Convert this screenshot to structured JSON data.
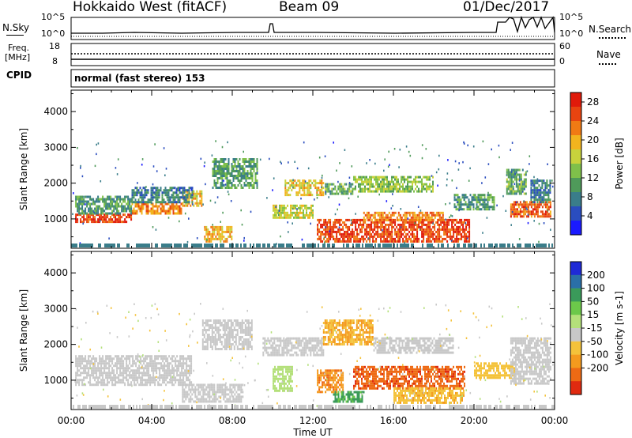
{
  "header": {
    "station": "Hokkaido West (fitACF)",
    "beam": "Beam 09",
    "date": "01/Dec/2017"
  },
  "noise_panel": {
    "left_label": "N.Sky",
    "right_label": "N.Search",
    "left_top_tick": "10^5",
    "left_bottom_tick": "10^0",
    "right_top_tick": "10^5",
    "right_bottom_tick": "10^0"
  },
  "freq_panel": {
    "left_label_1": "Freq.",
    "left_label_2": "[MHz]",
    "right_label": "Nave",
    "left_top_tick": "18",
    "left_bottom_tick": "8",
    "right_top_tick": "60",
    "right_bottom_tick": "0"
  },
  "cpid": {
    "label": "CPID",
    "program": "normal (fast stereo) 153"
  },
  "chart_data": [
    {
      "type": "heatmap",
      "panel": "power",
      "ylabel": "Slant Range [km]",
      "xlabel": "",
      "ylim": [
        180,
        4600
      ],
      "xlim": [
        0,
        24
      ],
      "y_ticks": [
        "1000",
        "2000",
        "3000",
        "4000"
      ],
      "colorbar": {
        "label": "Power [dB]",
        "ticks": [
          "4",
          "8",
          "12",
          "16",
          "20",
          "24",
          "28"
        ],
        "colors": [
          "#1a1aff",
          "#2a4dbf",
          "#3a7d8a",
          "#4f9a5a",
          "#7fc04a",
          "#c8d23c",
          "#f2b41e",
          "#f07a14",
          "#e84410",
          "#e01a0a"
        ]
      },
      "bands": [
        {
          "t0": 0.2,
          "t1": 3.0,
          "r0": 900,
          "r1": 1150,
          "value": 26
        },
        {
          "t0": 3.0,
          "t1": 5.5,
          "r0": 1150,
          "r1": 1450,
          "value": 22
        },
        {
          "t0": 5.5,
          "t1": 6.5,
          "r0": 1400,
          "r1": 1800,
          "value": 18
        },
        {
          "t0": 0.2,
          "t1": 3.0,
          "r0": 1150,
          "r1": 1650,
          "value": 10
        },
        {
          "t0": 3.0,
          "t1": 6.0,
          "r0": 1450,
          "r1": 1900,
          "value": 8
        },
        {
          "t0": 6.6,
          "t1": 8.0,
          "r0": 400,
          "r1": 800,
          "value": 20
        },
        {
          "t0": 7.0,
          "t1": 9.2,
          "r0": 1900,
          "r1": 2700,
          "value": 10
        },
        {
          "t0": 10.6,
          "t1": 12.5,
          "r0": 1700,
          "r1": 2100,
          "value": 18
        },
        {
          "t0": 10.0,
          "t1": 12.0,
          "r0": 1050,
          "r1": 1400,
          "value": 16
        },
        {
          "t0": 12.2,
          "t1": 19.8,
          "r0": 400,
          "r1": 1000,
          "value": 26
        },
        {
          "t0": 14.5,
          "t1": 18.5,
          "r0": 1000,
          "r1": 1200,
          "value": 22
        },
        {
          "t0": 12.6,
          "t1": 14.0,
          "r0": 1700,
          "r1": 2000,
          "value": 12
        },
        {
          "t0": 14.0,
          "t1": 18.0,
          "r0": 1800,
          "r1": 2200,
          "value": 14
        },
        {
          "t0": 19.0,
          "t1": 21.0,
          "r0": 1300,
          "r1": 1700,
          "value": 10
        },
        {
          "t0": 21.8,
          "t1": 23.8,
          "r0": 1100,
          "r1": 1500,
          "value": 24
        },
        {
          "t0": 21.6,
          "t1": 22.6,
          "r0": 1700,
          "r1": 2400,
          "value": 12
        },
        {
          "t0": 22.8,
          "t1": 23.8,
          "r0": 1500,
          "r1": 2100,
          "value": 8
        }
      ]
    },
    {
      "type": "heatmap",
      "panel": "velocity",
      "ylabel": "Slant Range [km]",
      "xlabel": "Time UT",
      "ylim": [
        180,
        4600
      ],
      "xlim": [
        0,
        24
      ],
      "y_ticks": [
        "1000",
        "2000",
        "3000",
        "4000"
      ],
      "x_ticks": [
        "00:00",
        "04:00",
        "08:00",
        "12:00",
        "16:00",
        "20:00",
        "00:00"
      ],
      "colorbar": {
        "label": "Velocity [m s-1]",
        "ticks": [
          "200",
          "100",
          "50",
          "15",
          "-15",
          "-50",
          "-100",
          "-200"
        ],
        "colors": [
          "#1f2ad6",
          "#2a6fa8",
          "#3a9a5a",
          "#6cc84a",
          "#b4e07a",
          "#c8c8c8",
          "#f4c23a",
          "#f49a1e",
          "#ee6a14",
          "#e02a10"
        ]
      },
      "bands": [
        {
          "t0": 0.2,
          "t1": 6.0,
          "r0": 900,
          "r1": 1700,
          "value": 0
        },
        {
          "t0": 5.5,
          "t1": 8.5,
          "r0": 400,
          "r1": 900,
          "value": 0
        },
        {
          "t0": 6.5,
          "t1": 9.0,
          "r0": 1900,
          "r1": 2700,
          "value": 0
        },
        {
          "t0": 9.5,
          "t1": 12.5,
          "r0": 1700,
          "r1": 2200,
          "value": 0
        },
        {
          "t0": 10.0,
          "t1": 11.0,
          "r0": 700,
          "r1": 1400,
          "value": 30
        },
        {
          "t0": 12.2,
          "t1": 13.5,
          "r0": 700,
          "r1": 1300,
          "value": -70
        },
        {
          "t0": 13.0,
          "t1": 14.5,
          "r0": 400,
          "r1": 700,
          "value": 80
        },
        {
          "t0": 14.0,
          "t1": 19.5,
          "r0": 800,
          "r1": 1400,
          "value": -90
        },
        {
          "t0": 16.0,
          "t1": 19.5,
          "r0": 400,
          "r1": 800,
          "value": -40
        },
        {
          "t0": 12.5,
          "t1": 15.0,
          "r0": 2000,
          "r1": 2700,
          "value": -50
        },
        {
          "t0": 15.0,
          "t1": 19.0,
          "r0": 1800,
          "r1": 2200,
          "value": 0
        },
        {
          "t0": 20.0,
          "t1": 22.0,
          "r0": 1100,
          "r1": 1500,
          "value": -30
        },
        {
          "t0": 21.8,
          "t1": 23.8,
          "r0": 900,
          "r1": 2200,
          "value": 0
        }
      ]
    }
  ]
}
